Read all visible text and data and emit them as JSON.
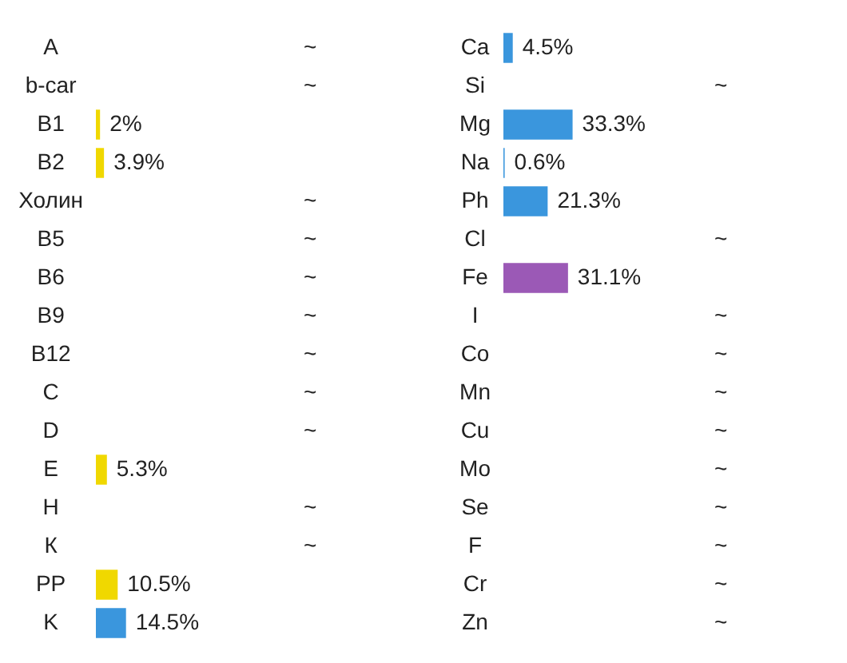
{
  "chart_data": [
    {
      "type": "bar",
      "orientation": "horizontal",
      "categories": [
        "A",
        "b-car",
        "B1",
        "B2",
        "Холин",
        "B5",
        "B6",
        "B9",
        "B12",
        "C",
        "D",
        "E",
        "H",
        "К",
        "PP",
        "K"
      ],
      "values": [
        null,
        null,
        2,
        3.9,
        null,
        null,
        null,
        null,
        null,
        null,
        null,
        5.3,
        null,
        null,
        10.5,
        14.5
      ],
      "value_labels": [
        "~",
        "~",
        "2%",
        "3.9%",
        "~",
        "~",
        "~",
        "~",
        "~",
        "~",
        "~",
        "5.3%",
        "~",
        "~",
        "10.5%",
        "14.5%"
      ],
      "colors": [
        "#f0d800",
        "#f0d800",
        "#f0d800",
        "#f0d800",
        "#f0d800",
        "#f0d800",
        "#f0d800",
        "#f0d800",
        "#f0d800",
        "#f0d800",
        "#f0d800",
        "#f0d800",
        "#f0d800",
        "#f0d800",
        "#f0d800",
        "#3a96dd"
      ]
    },
    {
      "type": "bar",
      "orientation": "horizontal",
      "categories": [
        "Ca",
        "Si",
        "Mg",
        "Na",
        "Ph",
        "Cl",
        "Fe",
        "I",
        "Co",
        "Mn",
        "Cu",
        "Mo",
        "Se",
        "F",
        "Cr",
        "Zn"
      ],
      "values": [
        4.5,
        null,
        33.3,
        0.6,
        21.3,
        null,
        31.1,
        null,
        null,
        null,
        null,
        null,
        null,
        null,
        null,
        null
      ],
      "value_labels": [
        "4.5%",
        "~",
        "33.3%",
        "0.6%",
        "21.3%",
        "~",
        "31.1%",
        "~",
        "~",
        "~",
        "~",
        "~",
        "~",
        "~",
        "~",
        "~"
      ],
      "colors": [
        "#3a96dd",
        "#3a96dd",
        "#3a96dd",
        "#3a96dd",
        "#3a96dd",
        "#3a96dd",
        "#9b59b6",
        "#3a96dd",
        "#3a96dd",
        "#3a96dd",
        "#3a96dd",
        "#3a96dd",
        "#3a96dd",
        "#3a96dd",
        "#3a96dd",
        "#3a96dd"
      ]
    }
  ]
}
